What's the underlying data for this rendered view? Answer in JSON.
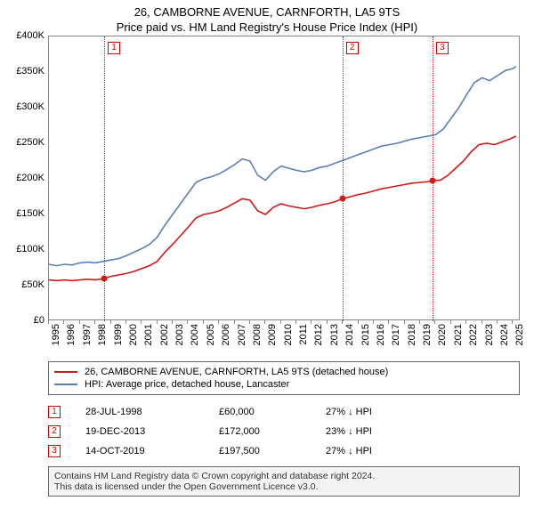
{
  "title": {
    "line1": "26, CAMBORNE AVENUE, CARNFORTH, LA5 9TS",
    "line2": "Price paid vs. HM Land Registry's House Price Index (HPI)"
  },
  "chart": {
    "type": "line",
    "x_domain": [
      1995,
      2025.5
    ],
    "y_domain": [
      0,
      400000
    ],
    "y_ticks": [
      0,
      50000,
      100000,
      150000,
      200000,
      250000,
      300000,
      350000,
      400000
    ],
    "y_tick_labels": [
      "£0",
      "£50K",
      "£100K",
      "£150K",
      "£200K",
      "£250K",
      "£300K",
      "£350K",
      "£400K"
    ],
    "x_ticks": [
      1995,
      1996,
      1997,
      1998,
      1999,
      2000,
      2001,
      2002,
      2003,
      2004,
      2005,
      2006,
      2007,
      2008,
      2009,
      2010,
      2011,
      2012,
      2013,
      2014,
      2015,
      2016,
      2017,
      2018,
      2019,
      2020,
      2021,
      2022,
      2023,
      2024,
      2025
    ],
    "label_fontsize": 11,
    "colors": {
      "red": "#d11919",
      "blue": "#5b7fb8",
      "grid": "#eeeeee",
      "border": "#888888",
      "background": "#ffffff"
    },
    "line_width": 1.6,
    "series": {
      "property": {
        "label": "26, CAMBORNE AVENUE, CARNFORTH, LA5 9TS (detached house)",
        "color": "#d11919",
        "data": [
          [
            1995,
            58000
          ],
          [
            1995.5,
            57000
          ],
          [
            1996,
            58000
          ],
          [
            1996.5,
            57000
          ],
          [
            1997,
            58000
          ],
          [
            1997.5,
            59000
          ],
          [
            1998,
            58000
          ],
          [
            1998.57,
            60000
          ],
          [
            1999,
            63000
          ],
          [
            1999.5,
            65000
          ],
          [
            2000,
            67000
          ],
          [
            2000.5,
            70000
          ],
          [
            2001,
            74000
          ],
          [
            2001.5,
            78000
          ],
          [
            2002,
            84000
          ],
          [
            2002.5,
            97000
          ],
          [
            2003,
            108000
          ],
          [
            2003.5,
            120000
          ],
          [
            2004,
            132000
          ],
          [
            2004.5,
            145000
          ],
          [
            2005,
            150000
          ],
          [
            2005.5,
            152000
          ],
          [
            2006,
            155000
          ],
          [
            2006.5,
            160000
          ],
          [
            2007,
            166000
          ],
          [
            2007.5,
            172000
          ],
          [
            2008,
            170000
          ],
          [
            2008.5,
            155000
          ],
          [
            2009,
            150000
          ],
          [
            2009.5,
            160000
          ],
          [
            2010,
            165000
          ],
          [
            2010.5,
            162000
          ],
          [
            2011,
            160000
          ],
          [
            2011.5,
            158000
          ],
          [
            2012,
            160000
          ],
          [
            2012.5,
            163000
          ],
          [
            2013,
            165000
          ],
          [
            2013.5,
            168000
          ],
          [
            2013.97,
            172000
          ],
          [
            2014.5,
            175000
          ],
          [
            2015,
            178000
          ],
          [
            2015.5,
            180000
          ],
          [
            2016,
            183000
          ],
          [
            2016.5,
            186000
          ],
          [
            2017,
            188000
          ],
          [
            2017.5,
            190000
          ],
          [
            2018,
            192000
          ],
          [
            2018.5,
            194000
          ],
          [
            2019,
            195000
          ],
          [
            2019.5,
            196000
          ],
          [
            2019.79,
            197500
          ],
          [
            2020.3,
            198000
          ],
          [
            2020.8,
            205000
          ],
          [
            2021.3,
            215000
          ],
          [
            2021.8,
            225000
          ],
          [
            2022.3,
            238000
          ],
          [
            2022.8,
            248000
          ],
          [
            2023.3,
            250000
          ],
          [
            2023.8,
            248000
          ],
          [
            2024.3,
            252000
          ],
          [
            2024.8,
            256000
          ],
          [
            2025.2,
            260000
          ]
        ]
      },
      "hpi": {
        "label": "HPI: Average price, detached house, Lancaster",
        "color": "#5b7fb8",
        "data": [
          [
            1995,
            80000
          ],
          [
            1995.5,
            78000
          ],
          [
            1996,
            80000
          ],
          [
            1996.5,
            79000
          ],
          [
            1997,
            82000
          ],
          [
            1997.5,
            83000
          ],
          [
            1998,
            82000
          ],
          [
            1998.5,
            84000
          ],
          [
            1999,
            86000
          ],
          [
            1999.5,
            88000
          ],
          [
            2000,
            92000
          ],
          [
            2000.5,
            97000
          ],
          [
            2001,
            102000
          ],
          [
            2001.5,
            108000
          ],
          [
            2002,
            118000
          ],
          [
            2002.5,
            135000
          ],
          [
            2003,
            150000
          ],
          [
            2003.5,
            165000
          ],
          [
            2004,
            180000
          ],
          [
            2004.5,
            195000
          ],
          [
            2005,
            200000
          ],
          [
            2005.5,
            203000
          ],
          [
            2006,
            207000
          ],
          [
            2006.5,
            213000
          ],
          [
            2007,
            220000
          ],
          [
            2007.5,
            228000
          ],
          [
            2008,
            225000
          ],
          [
            2008.5,
            205000
          ],
          [
            2009,
            198000
          ],
          [
            2009.5,
            210000
          ],
          [
            2010,
            218000
          ],
          [
            2010.5,
            215000
          ],
          [
            2011,
            212000
          ],
          [
            2011.5,
            210000
          ],
          [
            2012,
            212000
          ],
          [
            2012.5,
            216000
          ],
          [
            2013,
            218000
          ],
          [
            2013.5,
            222000
          ],
          [
            2014,
            226000
          ],
          [
            2014.5,
            230000
          ],
          [
            2015,
            234000
          ],
          [
            2015.5,
            238000
          ],
          [
            2016,
            242000
          ],
          [
            2016.5,
            246000
          ],
          [
            2017,
            248000
          ],
          [
            2017.5,
            250000
          ],
          [
            2018,
            253000
          ],
          [
            2018.5,
            256000
          ],
          [
            2019,
            258000
          ],
          [
            2019.5,
            260000
          ],
          [
            2020,
            262000
          ],
          [
            2020.5,
            270000
          ],
          [
            2021,
            285000
          ],
          [
            2021.5,
            300000
          ],
          [
            2022,
            318000
          ],
          [
            2022.5,
            335000
          ],
          [
            2023,
            342000
          ],
          [
            2023.5,
            338000
          ],
          [
            2024,
            345000
          ],
          [
            2024.5,
            352000
          ],
          [
            2025,
            355000
          ],
          [
            2025.2,
            358000
          ]
        ]
      }
    },
    "markers": [
      {
        "id": "1",
        "x": 1998.57,
        "y": 60000,
        "date": "28-JUL-1998",
        "price": "£60,000",
        "diff": "27% ↓ HPI"
      },
      {
        "id": "2",
        "x": 2013.97,
        "y": 172000,
        "date": "19-DEC-2013",
        "price": "£172,000",
        "diff": "23% ↓ HPI"
      },
      {
        "id": "3",
        "x": 2019.79,
        "y": 197500,
        "date": "14-OCT-2019",
        "price": "£197,500",
        "diff": "27% ↓ HPI"
      }
    ]
  },
  "footer": {
    "line1": "Contains HM Land Registry data © Crown copyright and database right 2024.",
    "line2": "This data is licensed under the Open Government Licence v3.0."
  }
}
